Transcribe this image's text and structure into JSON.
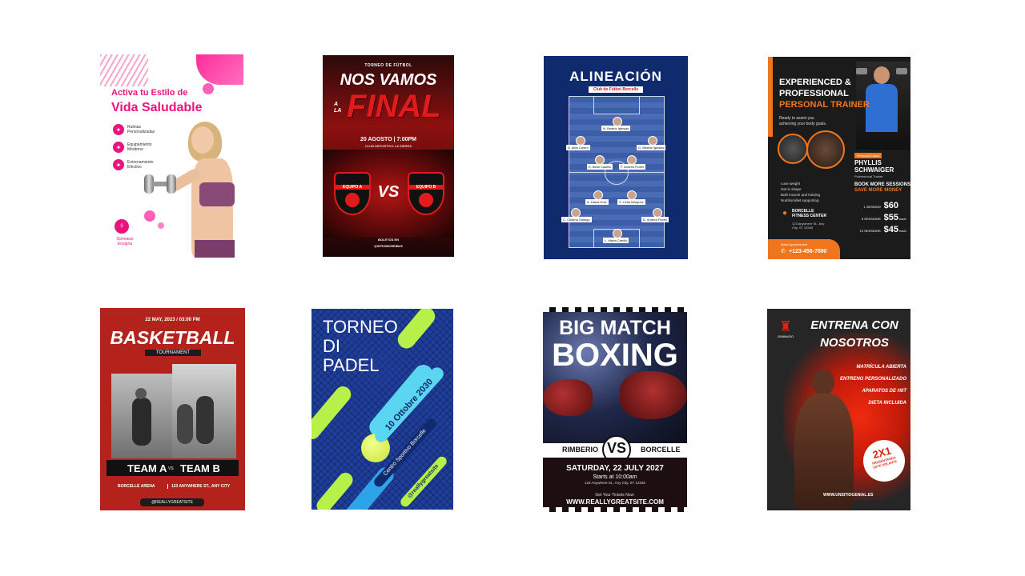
{
  "posters": {
    "p1": {
      "line1": "Activa tu Estilo de",
      "line2": "Vida Saludable",
      "features": [
        "Rutinas Personalizadas",
        "Equipamiento Moderno",
        "Entrenamiento Efectivo"
      ],
      "brand": "Gimnasio Ensigna"
    },
    "p2": {
      "top": "TORNEO DE FÚTBOL",
      "line1": "NOS VAMOS",
      "la": "A LA",
      "line2": "FINAL",
      "date": "20 AGOSTO | 7:00PM",
      "venue": "CLUB DEPORTIVO LA SIERRA",
      "team_a": "EQUIPO A",
      "vs": "VS",
      "team_b": "EQUIPO B",
      "footer1": "BOLETOS EN",
      "footer2": "@SITIOINCREIBLE"
    },
    "p3": {
      "title": "ALINEACIÓN",
      "club": "Club de Fútbol Borcelle",
      "players": [
        "N. Beatriz Iglesias",
        "D. Alba Castro",
        "G. Beatriz Iglesias",
        "E. Bella Castillo",
        "F. Andrea Flores",
        "A. Diana Díaz",
        "S. Celia Márquez",
        "C. Cristina Gallego",
        "D. Andrea Flores",
        "L. Marta Carrillo"
      ]
    },
    "p4": {
      "t1": "EXPERIENCED &",
      "t2": "PROFESSIONAL",
      "t3": "PERSONAL TRAINER",
      "sub1": "Ready to assist you",
      "sub2": "achieving your body goals.",
      "tag": "Personal Coach",
      "name1": "PHYLLIS",
      "name2": "SCHWAIGER",
      "role": "Professional Trainer",
      "book1": "BOOK MORE SESSIONS",
      "book2": "SAVE MORE MONEY",
      "bullets": [
        "Lose weight",
        "Get in shape",
        "Built muscle and training",
        "Nutrition/diet supporting"
      ],
      "prices": [
        {
          "label": "1 SESSION",
          "price": "$60",
          "unit": ""
        },
        {
          "label": "5 SESSIONS",
          "price": "$55",
          "unit": "each"
        },
        {
          "label": "10 SESSIONS",
          "price": "$45",
          "unit": "each"
        }
      ],
      "center1": "BORCELLE",
      "center2": "FITNESS CENTER",
      "addr1": "123 Anywhere St., Any",
      "addr2": "City, ST 12345",
      "appt": "Make Appointment",
      "phone": "+123-456-7890"
    },
    "p5": {
      "date": "22 MAY, 2023 / 03:00 PM",
      "title": "BASKETBALL",
      "sub": "TOURNAMENT",
      "team_a": "TEAM A",
      "vs": "VS",
      "team_b": "TEAM B",
      "venue": "BORCELLE ARENA",
      "addr": "123 ANYWHERE ST., ANY CITY",
      "site": "@REALLYGREATSITE"
    },
    "p6": {
      "t1": "TORNEO",
      "t2": "DI",
      "t3": "PADEL",
      "date": "10 Ottobre 2030",
      "club": "Centro Sportivo Borcelle",
      "site": "@reallygreatsite"
    },
    "p7": {
      "t1": "BIG MATCH",
      "t2": "BOXING",
      "left": "RIMBERIO",
      "vs": "VS",
      "right": "BORCELLE",
      "date": "SATURDAY, 22 JULY 2027",
      "time": "Starts at 10:00am",
      "addr": "123 Anywhere St., Any City, ST 12345",
      "tickets": "Get Your Tickets Now:",
      "site": "WWW.REALLYGREATSITE.COM"
    },
    "p8": {
      "t1": "ENTRENA CON",
      "t2": "NOSOTROS",
      "brand": "GIMNASIO",
      "items": [
        "MATRÍCULA ABIERTA",
        "ENTRENO PERSONALIZADO",
        "APARATOS DE HIIT",
        "DIETA INCLUIDA"
      ],
      "promo1": "2X1",
      "promo2": "PRESENTANDO",
      "promo3": "ESTE VOLANTE",
      "site": "WWW.UNSITIOGENIAL.ES"
    }
  }
}
